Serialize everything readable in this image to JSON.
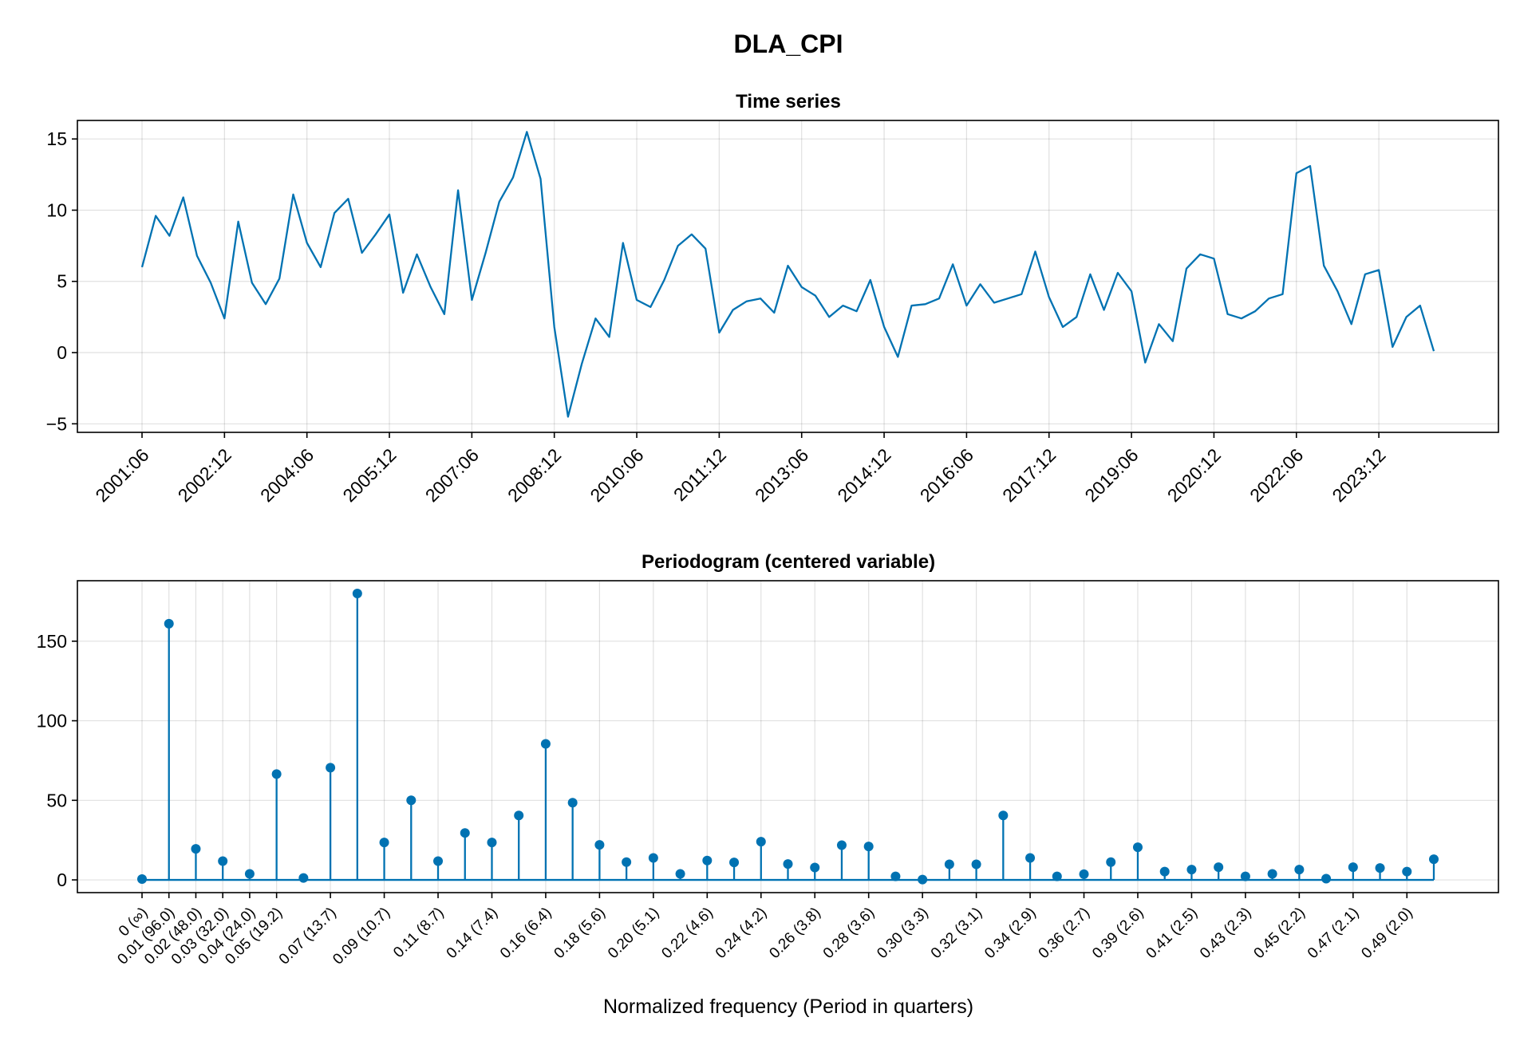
{
  "figure": {
    "title": "DLA_CPI"
  },
  "chart_data": [
    {
      "type": "line",
      "title": "Time series",
      "xlabel": "",
      "ylabel": "",
      "color": "#0072b2",
      "x_ticks": [
        "2001:06",
        "2002:12",
        "2004:06",
        "2005:12",
        "2007:06",
        "2008:12",
        "2010:06",
        "2011:12",
        "2013:06",
        "2014:12",
        "2016:06",
        "2017:12",
        "2019:06",
        "2020:12",
        "2022:06",
        "2023:12"
      ],
      "x_tick_step": 6,
      "y_ticks": [
        -5,
        0,
        5,
        10,
        15
      ],
      "y_tick_labels": [
        "−5",
        "0",
        "5",
        "10",
        "15"
      ],
      "ylim": [
        -5.6,
        16.3
      ],
      "x_start": "2001:06",
      "x_interval": "quarterly",
      "values": [
        6.0,
        9.6,
        8.2,
        10.9,
        6.8,
        4.9,
        2.4,
        9.2,
        4.9,
        3.4,
        5.2,
        11.1,
        7.7,
        6.0,
        9.8,
        10.8,
        7.0,
        8.3,
        9.7,
        4.2,
        6.9,
        4.6,
        2.7,
        11.4,
        3.7,
        7.0,
        10.6,
        12.3,
        15.5,
        12.2,
        1.8,
        -4.5,
        -0.8,
        2.4,
        1.1,
        7.7,
        3.7,
        3.2,
        5.1,
        7.5,
        8.3,
        7.3,
        1.4,
        3.0,
        3.6,
        3.8,
        2.8,
        6.1,
        4.6,
        4.0,
        2.5,
        3.3,
        2.9,
        5.1,
        1.8,
        -0.3,
        3.3,
        3.4,
        3.8,
        6.2,
        3.3,
        4.8,
        3.5,
        3.8,
        4.1,
        7.1,
        3.9,
        1.8,
        2.5,
        5.5,
        3.0,
        5.6,
        4.3,
        -0.7,
        2.0,
        0.8,
        5.9,
        6.9,
        6.6,
        2.7,
        2.4,
        2.9,
        3.8,
        4.1,
        12.6,
        13.1,
        6.1,
        4.3,
        2.0,
        5.5,
        5.8,
        0.4,
        2.5,
        3.3,
        0.1
      ]
    },
    {
      "type": "stem",
      "title": "Periodogram (centered variable)",
      "xlabel": "Normalized frequency (Period in quarters)",
      "ylabel": "",
      "color": "#0072b2",
      "y_ticks": [
        0,
        50,
        100,
        150
      ],
      "ylim": [
        -8,
        188
      ],
      "x_tick_labels": [
        "0 (∞)",
        "0.01 (96.0)",
        "0.02 (48.0)",
        "0.03 (32.0)",
        "0.04 (24.0)",
        "0.05 (19.2)",
        "0.07 (13.7)",
        "0.09 (10.7)",
        "0.11 (8.7)",
        "0.14 (7.4)",
        "0.16 (6.4)",
        "0.18 (5.6)",
        "0.20 (5.1)",
        "0.22 (4.6)",
        "0.24 (4.2)",
        "0.26 (3.8)",
        "0.28 (3.6)",
        "0.30 (3.3)",
        "0.32 (3.1)",
        "0.34 (2.9)",
        "0.36 (2.7)",
        "0.39 (2.6)",
        "0.41 (2.5)",
        "0.43 (2.3)",
        "0.45 (2.2)",
        "0.47 (2.1)",
        "0.49 (2.0)"
      ],
      "x_tick_indices": [
        0,
        1,
        2,
        3,
        4,
        5,
        7,
        9,
        11,
        13,
        15,
        17,
        19,
        21,
        23,
        25,
        27,
        29,
        31,
        33,
        35,
        37,
        39,
        41,
        43,
        45,
        47
      ],
      "values": [
        0.5,
        161,
        19.5,
        11.8,
        3.8,
        66.5,
        1.2,
        70.5,
        180,
        23.5,
        50,
        11.8,
        29.5,
        23.5,
        40.5,
        85.5,
        48.5,
        22,
        11.2,
        13.8,
        3.8,
        12.2,
        11,
        24,
        10,
        7.8,
        21.8,
        21,
        2.2,
        0.2,
        9.8,
        9.8,
        40.5,
        13.8,
        2.2,
        3.6,
        11.2,
        20.5,
        5.2,
        6.5,
        8,
        2.2,
        3.8,
        6.5,
        0.8,
        8,
        7.5,
        5.2,
        13
      ]
    }
  ]
}
